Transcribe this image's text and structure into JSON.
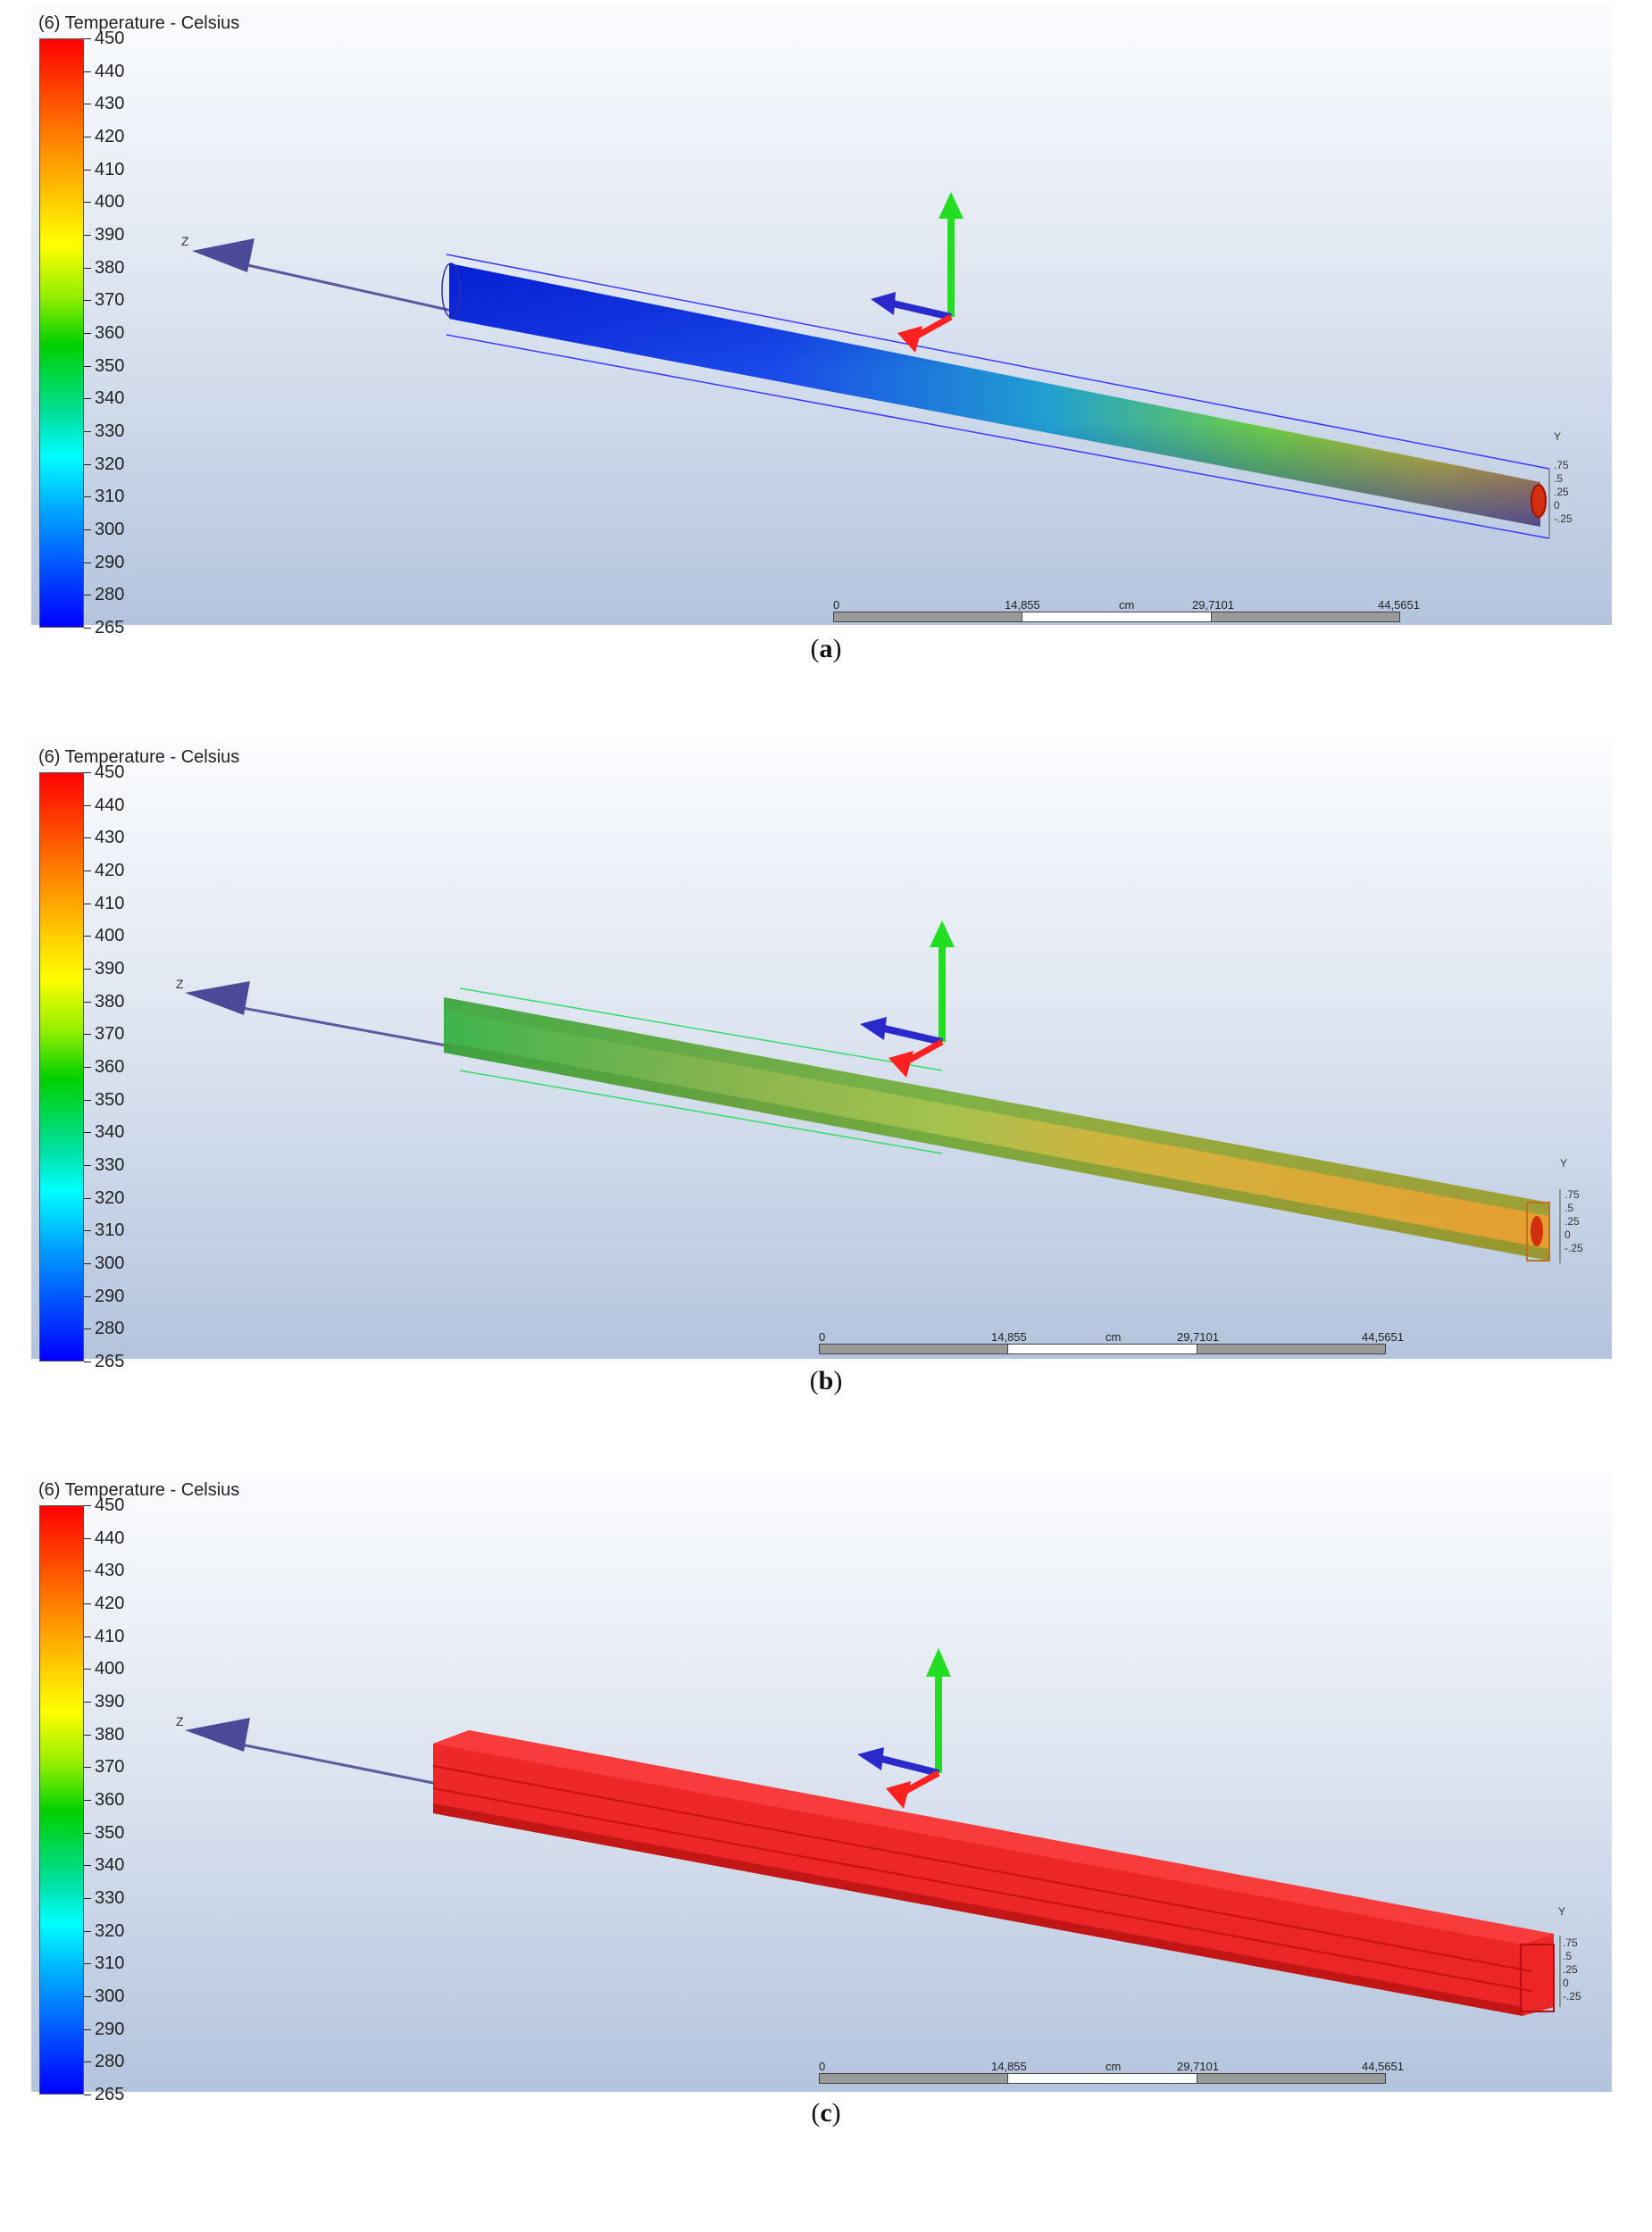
{
  "colorbar": {
    "title": "(6) Temperature - Celsius",
    "ticks": [
      "450",
      "440",
      "430",
      "420",
      "410",
      "400",
      "390",
      "380",
      "370",
      "360",
      "350",
      "340",
      "330",
      "320",
      "310",
      "300",
      "290",
      "280",
      "265"
    ]
  },
  "axis_label_z": "Z",
  "axis_label_y": "Y",
  "mini_ticks": [
    ".75",
    ".5",
    ".25",
    "0",
    "-.25"
  ],
  "scale": {
    "unit": "cm",
    "labels": [
      "0",
      "14,855",
      "29,7101",
      "44,5651"
    ]
  },
  "panels": [
    {
      "caption_letter": "a",
      "caption_open": "(",
      "caption_close": ")",
      "state": "blue-inner-green-hot-end"
    },
    {
      "caption_letter": "b",
      "caption_open": "(",
      "caption_close": ")",
      "state": "green-to-orange"
    },
    {
      "caption_letter": "c",
      "caption_open": "(",
      "caption_close": ")",
      "state": "red"
    }
  ],
  "colors": {
    "red": "#ff1a1a",
    "green_axis": "#22dd22",
    "blue_axis": "#2a2acc",
    "z_axis": "#5a5aa0"
  }
}
